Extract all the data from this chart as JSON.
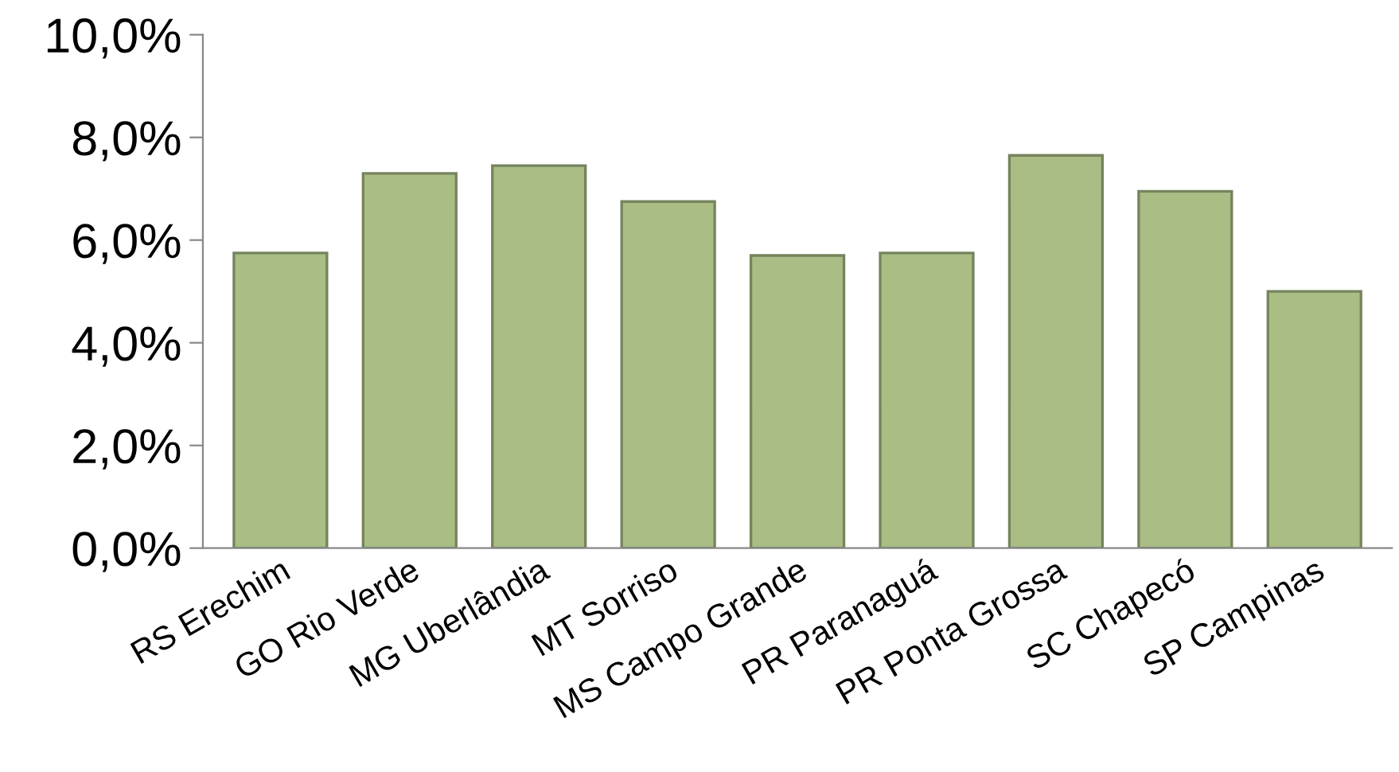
{
  "chart_data": {
    "type": "bar",
    "categories": [
      "RS Erechim",
      "GO Rio Verde",
      "MG Uberlândia",
      "MT Sorriso",
      "MS Campo Grande",
      "PR Paranaguá",
      "PR Ponta Grossa",
      "SC Chapecó",
      "SP Campinas"
    ],
    "values": [
      5.75,
      7.3,
      7.45,
      6.75,
      5.7,
      5.75,
      7.65,
      6.95,
      5.0
    ],
    "color": "#a9bd85",
    "ylim": [
      0,
      10
    ],
    "yticks": [
      {
        "value": 0,
        "label": "0,0%"
      },
      {
        "value": 2,
        "label": "2,0%"
      },
      {
        "value": 4,
        "label": "4,0%"
      },
      {
        "value": 6,
        "label": "6,0%"
      },
      {
        "value": 8,
        "label": "8,0%"
      },
      {
        "value": 10,
        "label": "10,0%"
      }
    ],
    "grid": false
  }
}
